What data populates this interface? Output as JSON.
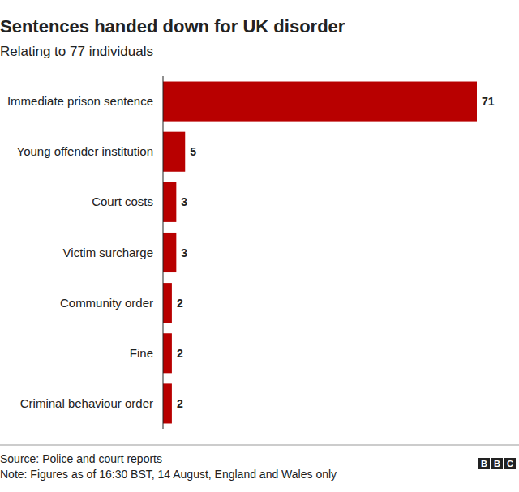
{
  "chart_data": {
    "type": "bar",
    "orientation": "horizontal",
    "title": "Sentences handed down for UK disorder",
    "subtitle": "Relating to 77 individuals",
    "categories": [
      "Immediate prison sentence",
      "Young offender institution",
      "Court costs",
      "Victim surcharge",
      "Community order",
      "Fine",
      "Criminal behaviour order"
    ],
    "values": [
      71,
      5,
      3,
      3,
      2,
      2,
      2
    ],
    "color": "#b80000",
    "xlim": [
      0,
      71
    ],
    "data_labels": true,
    "tick_labels": "y",
    "grid": false,
    "source": "Source: Police and court reports",
    "note": "Note: Figures as of 16:30 BST, 14 August, England and Wales only",
    "brand": "BBC"
  }
}
